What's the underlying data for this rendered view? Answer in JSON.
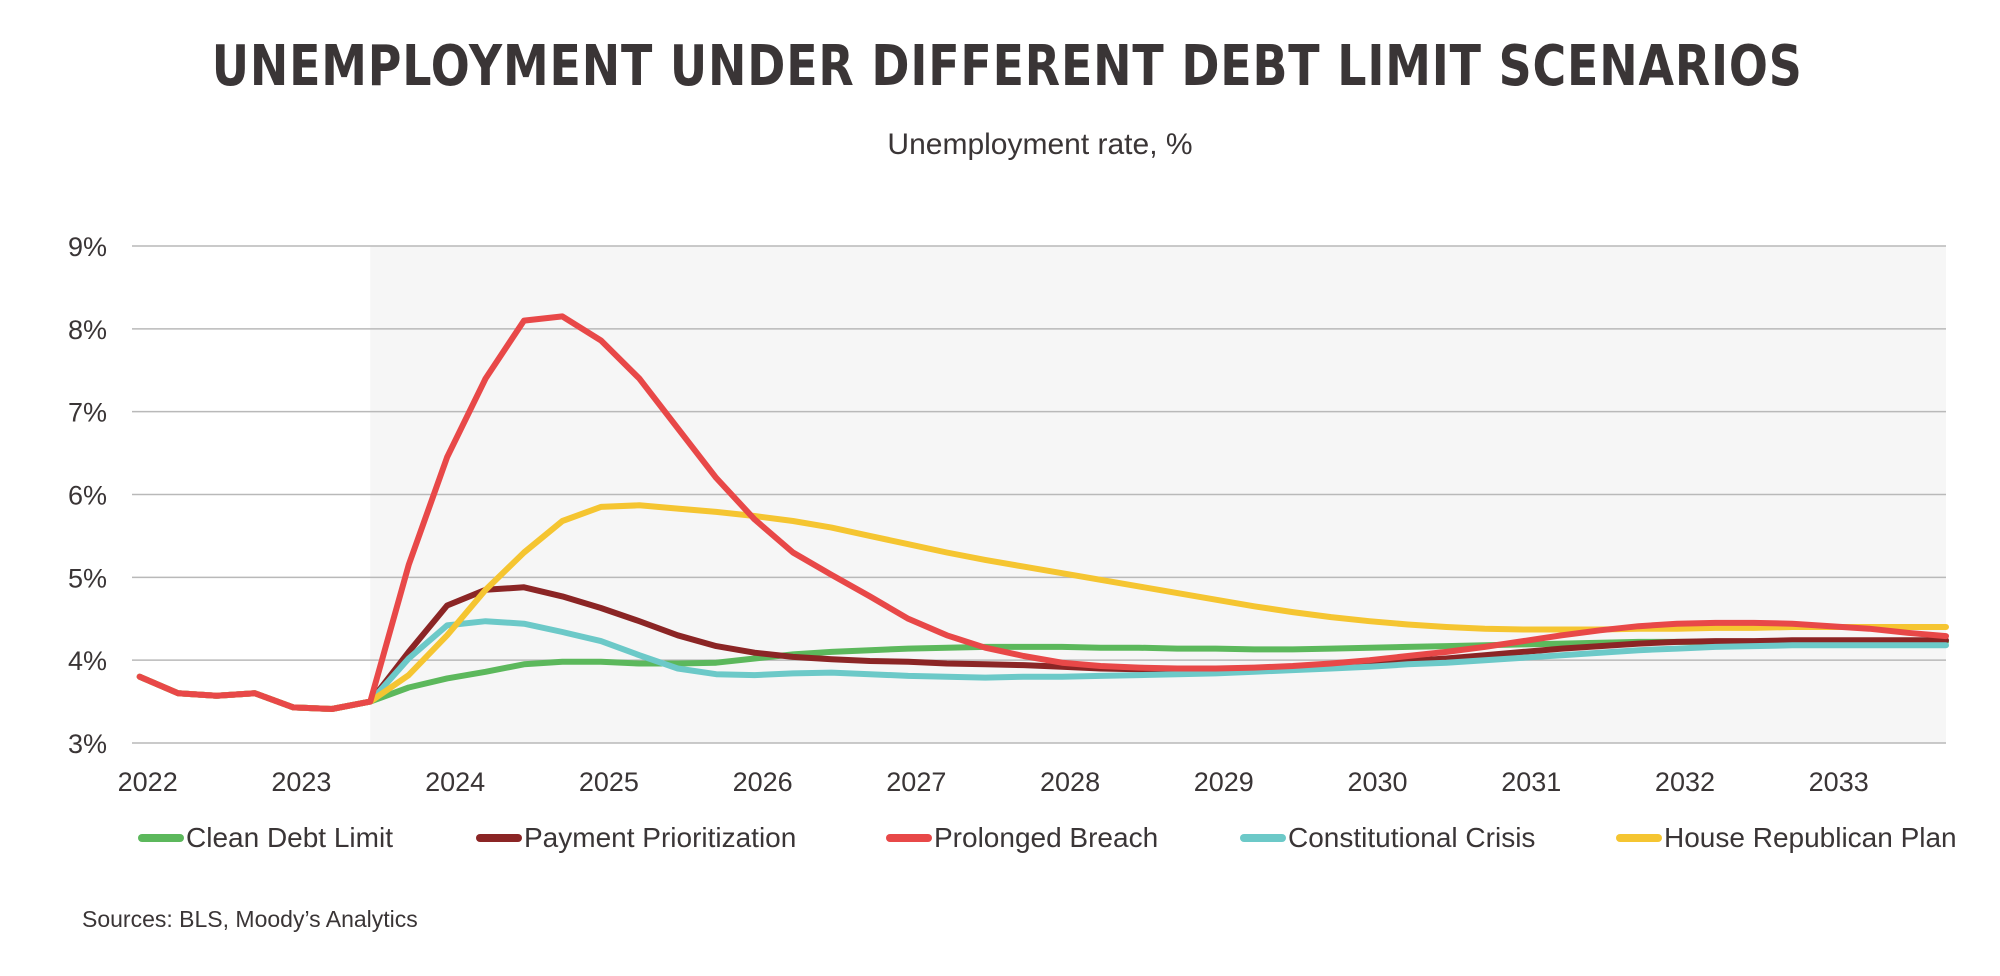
{
  "chart_data": {
    "type": "line",
    "title": "UNEMPLOYMENT UNDER DIFFERENT DEBT LIMIT SCENARIOS",
    "subtitle": "Unemployment rate, %",
    "xlabel": "",
    "ylabel": "",
    "x": [
      2022.0,
      2022.25,
      2022.5,
      2022.75,
      2023.0,
      2023.25,
      2023.5,
      2023.75,
      2024.0,
      2024.25,
      2024.5,
      2024.75,
      2025.0,
      2025.25,
      2025.5,
      2025.75,
      2026.0,
      2026.25,
      2026.5,
      2026.75,
      2027.0,
      2027.25,
      2027.5,
      2027.75,
      2028.0,
      2028.25,
      2028.5,
      2028.75,
      2029.0,
      2029.25,
      2029.5,
      2029.75,
      2030.0,
      2030.25,
      2030.5,
      2030.75,
      2031.0,
      2031.25,
      2031.5,
      2031.75,
      2032.0,
      2032.25,
      2032.5,
      2032.75,
      2033.0,
      2033.25,
      2033.5,
      2033.75
    ],
    "xlim": [
      2021.95,
      2033.75
    ],
    "ylim": [
      3,
      9
    ],
    "x_ticks": [
      "2022",
      "2023",
      "2024",
      "2025",
      "2026",
      "2027",
      "2028",
      "2029",
      "2030",
      "2031",
      "2032",
      "2033"
    ],
    "y_ticks": [
      "3%",
      "4%",
      "5%",
      "6%",
      "7%",
      "8%",
      "9%"
    ],
    "y_tick_values": [
      3,
      4,
      5,
      6,
      7,
      8,
      9
    ],
    "forecast_shading_start": 2023.5,
    "grid": true,
    "legend_position": "bottom",
    "series": [
      {
        "name": "Clean Debt Limit",
        "color": "#5cb85c",
        "values": [
          3.8,
          3.6,
          3.57,
          3.6,
          3.43,
          3.41,
          3.5,
          3.67,
          3.78,
          3.86,
          3.95,
          3.98,
          3.98,
          3.96,
          3.96,
          3.97,
          4.02,
          4.07,
          4.1,
          4.12,
          4.14,
          4.15,
          4.16,
          4.16,
          4.16,
          4.15,
          4.15,
          4.14,
          4.14,
          4.13,
          4.13,
          4.14,
          4.15,
          4.16,
          4.17,
          4.18,
          4.19,
          4.2,
          4.21,
          4.22,
          4.22,
          4.22,
          4.22,
          4.22,
          4.22,
          4.22,
          4.22,
          4.22
        ]
      },
      {
        "name": "Payment Prioritization",
        "color": "#8b2525",
        "values": [
          3.8,
          3.6,
          3.57,
          3.6,
          3.43,
          3.41,
          3.5,
          4.1,
          4.66,
          4.85,
          4.88,
          4.77,
          4.63,
          4.47,
          4.3,
          4.17,
          4.09,
          4.04,
          4.01,
          3.99,
          3.98,
          3.96,
          3.95,
          3.94,
          3.92,
          3.9,
          3.89,
          3.88,
          3.88,
          3.89,
          3.91,
          3.93,
          3.96,
          3.99,
          4.02,
          4.06,
          4.1,
          4.14,
          4.17,
          4.2,
          4.22,
          4.23,
          4.23,
          4.24,
          4.24,
          4.24,
          4.24,
          4.24
        ]
      },
      {
        "name": "Prolonged Breach",
        "color": "#e84848",
        "values": [
          3.8,
          3.6,
          3.57,
          3.6,
          3.43,
          3.41,
          3.5,
          5.15,
          6.45,
          7.4,
          8.1,
          8.15,
          7.86,
          7.4,
          6.8,
          6.2,
          5.7,
          5.3,
          5.03,
          4.77,
          4.5,
          4.3,
          4.15,
          4.05,
          3.97,
          3.93,
          3.91,
          3.9,
          3.9,
          3.91,
          3.93,
          3.96,
          4.0,
          4.05,
          4.1,
          4.16,
          4.23,
          4.3,
          4.36,
          4.41,
          4.44,
          4.45,
          4.45,
          4.44,
          4.41,
          4.38,
          4.33,
          4.29
        ]
      },
      {
        "name": "Constitutional Crisis",
        "color": "#6cc9c8",
        "values": [
          3.8,
          3.6,
          3.57,
          3.6,
          3.43,
          3.41,
          3.5,
          4.02,
          4.42,
          4.47,
          4.44,
          4.34,
          4.23,
          4.06,
          3.9,
          3.83,
          3.82,
          3.84,
          3.85,
          3.83,
          3.81,
          3.8,
          3.79,
          3.8,
          3.8,
          3.81,
          3.82,
          3.83,
          3.84,
          3.86,
          3.88,
          3.9,
          3.92,
          3.95,
          3.97,
          4.0,
          4.03,
          4.06,
          4.09,
          4.12,
          4.14,
          4.16,
          4.17,
          4.18,
          4.18,
          4.18,
          4.18,
          4.18
        ]
      },
      {
        "name": "House Republican Plan",
        "color": "#f5c531",
        "values": [
          3.8,
          3.6,
          3.57,
          3.6,
          3.43,
          3.41,
          3.5,
          3.82,
          4.3,
          4.85,
          5.3,
          5.68,
          5.85,
          5.87,
          5.83,
          5.79,
          5.74,
          5.68,
          5.6,
          5.5,
          5.4,
          5.3,
          5.21,
          5.13,
          5.05,
          4.97,
          4.89,
          4.81,
          4.73,
          4.65,
          4.58,
          4.52,
          4.47,
          4.43,
          4.4,
          4.38,
          4.37,
          4.37,
          4.37,
          4.38,
          4.38,
          4.39,
          4.39,
          4.4,
          4.4,
          4.4,
          4.4,
          4.4
        ]
      }
    ]
  },
  "sources": "Sources: BLS, Moody’s Analytics"
}
